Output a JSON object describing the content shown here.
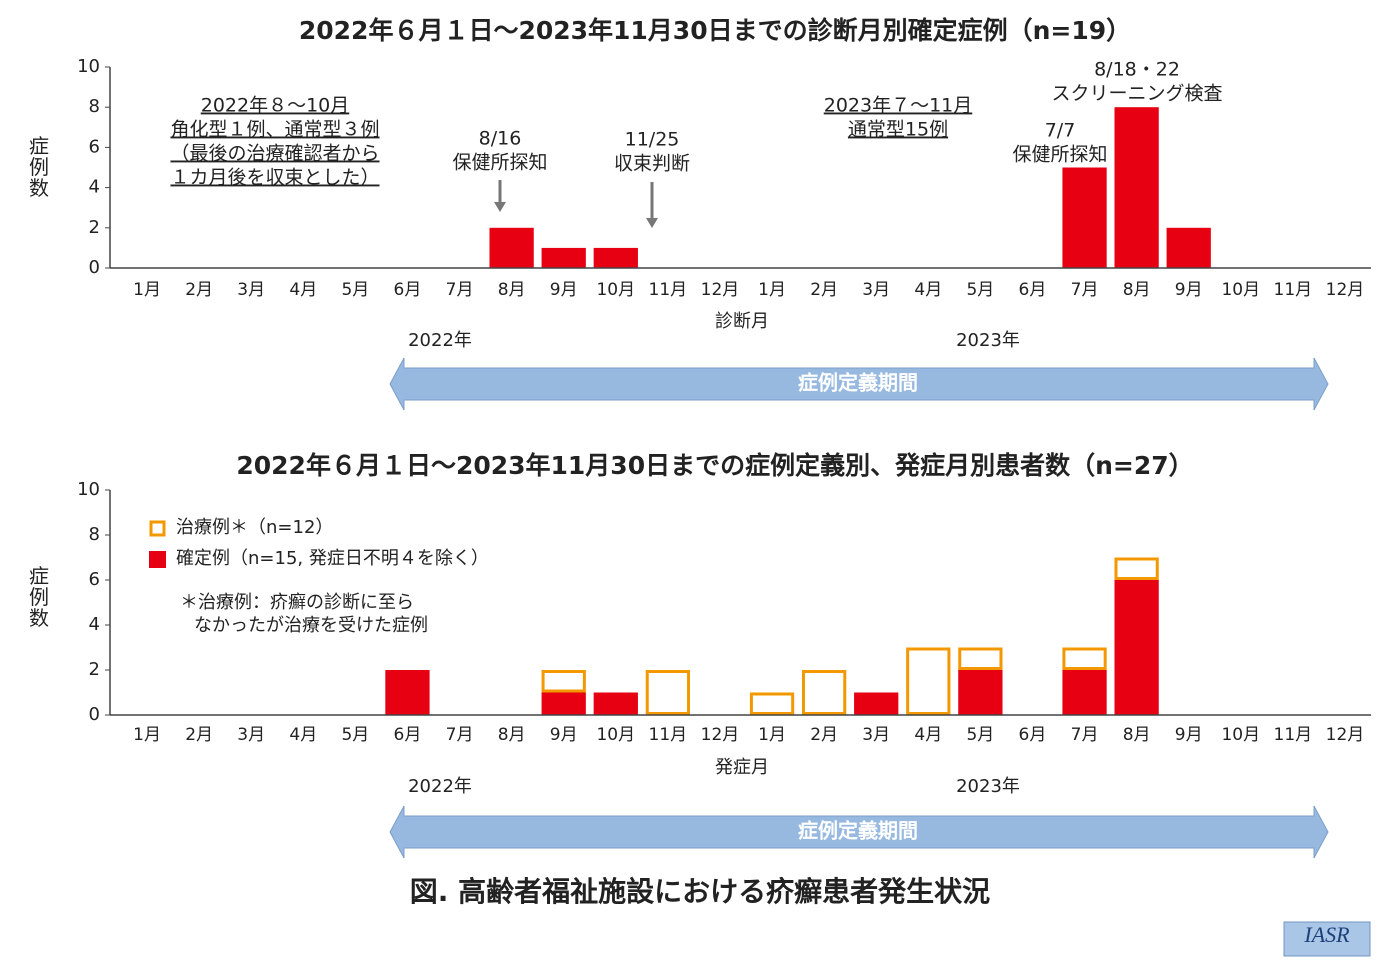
{
  "chart_data": [
    {
      "type": "bar",
      "title": "2022年６月１日～2023年11月30日までの診断月別確定症例（n=19）",
      "categories": [
        "1月",
        "2月",
        "3月",
        "4月",
        "5月",
        "6月",
        "7月",
        "8月",
        "9月",
        "10月",
        "11月",
        "12月",
        "1月",
        "2月",
        "3月",
        "4月",
        "5月",
        "6月",
        "7月",
        "8月",
        "9月",
        "10月",
        "11月",
        "12月"
      ],
      "values": [
        0,
        0,
        0,
        0,
        0,
        0,
        0,
        2,
        1,
        1,
        0,
        0,
        0,
        0,
        0,
        0,
        0,
        0,
        5,
        8,
        2,
        0,
        0,
        0
      ],
      "color": "#e60012",
      "ylim": [
        0,
        10
      ],
      "yticks": [
        0,
        2,
        4,
        6,
        8,
        10
      ],
      "ylabel": "症例数",
      "xlabel": "診断月",
      "year_labels": [
        "2022年",
        "2023年"
      ],
      "period_label": "症例定義期間",
      "annotations": [
        {
          "lines": [
            "2022年８～10月",
            "角化型１例、通常型３例",
            "（最後の治療確認者から",
            "１カ月後を収束とした）"
          ],
          "underline": true
        },
        {
          "lines": [
            "8/16",
            "保健所探知"
          ],
          "arrow": true
        },
        {
          "lines": [
            "11/25",
            "収束判断"
          ],
          "arrow": true
        },
        {
          "lines": [
            "2023年７～11月",
            "通常型15例"
          ],
          "underline": true
        },
        {
          "lines": [
            "7/7",
            "保健所探知"
          ]
        },
        {
          "lines": [
            "8/18・22",
            "スクリーニング検査"
          ]
        }
      ]
    },
    {
      "type": "stacked_bar",
      "title": "2022年６月１日～2023年11月30日までの症例定義別、発症月別患者数（n=27）",
      "categories": [
        "1月",
        "2月",
        "3月",
        "4月",
        "5月",
        "6月",
        "7月",
        "8月",
        "9月",
        "10月",
        "11月",
        "12月",
        "1月",
        "2月",
        "3月",
        "4月",
        "5月",
        "6月",
        "7月",
        "8月",
        "9月",
        "10月",
        "11月",
        "12月"
      ],
      "series": [
        {
          "name": "治療例＊（n=12）",
          "color": "#f39800",
          "style": "outline",
          "values": [
            0,
            0,
            0,
            0,
            0,
            0,
            0,
            0,
            1,
            0,
            2,
            0,
            1,
            2,
            0,
            3,
            1,
            0,
            1,
            1,
            0,
            0,
            0,
            0
          ]
        },
        {
          "name": "確定例（n=15, 発症日不明４を除く）",
          "color": "#e60012",
          "values": [
            0,
            0,
            0,
            0,
            0,
            2,
            0,
            0,
            1,
            1,
            0,
            0,
            0,
            0,
            1,
            0,
            2,
            0,
            2,
            6,
            0,
            0,
            0,
            0
          ]
        }
      ],
      "ylim": [
        0,
        10
      ],
      "yticks": [
        0,
        2,
        4,
        6,
        8,
        10
      ],
      "ylabel": "症例数",
      "xlabel": "発症月",
      "year_labels": [
        "2022年",
        "2023年"
      ],
      "period_label": "症例定義期間",
      "footnote": [
        "＊治療例：疥癬の診断に至ら",
        "なかったが治療を受けた症例"
      ]
    }
  ],
  "caption": "図. 高齢者福祉施設における疥癬患者発生状況",
  "logo": "IASR"
}
